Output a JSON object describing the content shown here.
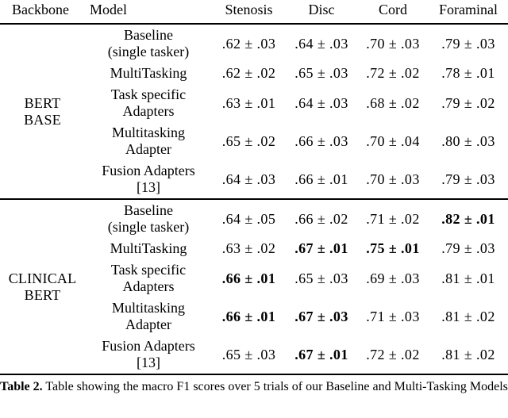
{
  "page": {
    "background": "#ffffff",
    "text_color": "#000000"
  },
  "table": {
    "headers": [
      "Backbone",
      "Model",
      "Stenosis",
      "Disc",
      "Cord",
      "Foraminal"
    ],
    "sections": [
      {
        "backbone_lines": [
          "BERT",
          "BASE"
        ],
        "rows": [
          {
            "model_lines": [
              "Baseline",
              "(single tasker)"
            ],
            "values": [
              {
                "text": ".62 ± .03",
                "bold": false
              },
              {
                "text": ".64 ± .03",
                "bold": false
              },
              {
                "text": ".70 ± .03",
                "bold": false
              },
              {
                "text": ".79 ± .03",
                "bold": false
              }
            ]
          },
          {
            "model_lines": [
              "MultiTasking"
            ],
            "values": [
              {
                "text": ".62 ± .02",
                "bold": false
              },
              {
                "text": ".65 ± .03",
                "bold": false
              },
              {
                "text": ".72 ± .02",
                "bold": false
              },
              {
                "text": ".78 ± .01",
                "bold": false
              }
            ]
          },
          {
            "model_lines": [
              "Task specific",
              "Adapters"
            ],
            "values": [
              {
                "text": ".63 ± .01",
                "bold": false
              },
              {
                "text": ".64 ± .03",
                "bold": false
              },
              {
                "text": ".68 ± .02",
                "bold": false
              },
              {
                "text": ".79 ± .02",
                "bold": false
              }
            ]
          },
          {
            "model_lines": [
              "Multitasking",
              "Adapter"
            ],
            "values": [
              {
                "text": ".65 ± .02",
                "bold": false
              },
              {
                "text": ".66 ± .03",
                "bold": false
              },
              {
                "text": ".70 ± .04",
                "bold": false
              },
              {
                "text": ".80 ± .03",
                "bold": false
              }
            ]
          },
          {
            "model_lines": [
              "Fusion Adapters",
              "[13]"
            ],
            "values": [
              {
                "text": ".64 ± .03",
                "bold": false
              },
              {
                "text": ".66 ± .01",
                "bold": false
              },
              {
                "text": ".70 ± .03",
                "bold": false
              },
              {
                "text": ".79 ± .03",
                "bold": false
              }
            ]
          }
        ]
      },
      {
        "backbone_lines": [
          "CLINICAL",
          "BERT"
        ],
        "rows": [
          {
            "model_lines": [
              "Baseline",
              "(single tasker)"
            ],
            "values": [
              {
                "text": ".64 ± .05",
                "bold": false
              },
              {
                "text": ".66 ± .02",
                "bold": false
              },
              {
                "text": ".71 ± .02",
                "bold": false
              },
              {
                "text": ".82 ± .01",
                "bold": true
              }
            ]
          },
          {
            "model_lines": [
              "MultiTasking"
            ],
            "values": [
              {
                "text": ".63 ± .02",
                "bold": false
              },
              {
                "text": ".67 ± .01",
                "bold": true
              },
              {
                "text": ".75 ± .01",
                "bold": true
              },
              {
                "text": ".79 ± .03",
                "bold": false
              }
            ]
          },
          {
            "model_lines": [
              "Task specific",
              "Adapters"
            ],
            "values": [
              {
                "text": ".66 ± .01",
                "bold": true
              },
              {
                "text": ".65 ± .03",
                "bold": false
              },
              {
                "text": ".69 ± .03",
                "bold": false
              },
              {
                "text": ".81 ± .01",
                "bold": false
              }
            ]
          },
          {
            "model_lines": [
              "Multitasking",
              "Adapter"
            ],
            "values": [
              {
                "text": ".66 ± .01",
                "bold": true
              },
              {
                "text": ".67 ± .03",
                "bold": true
              },
              {
                "text": ".71 ± .03",
                "bold": false
              },
              {
                "text": ".81 ± .02",
                "bold": false
              }
            ]
          },
          {
            "model_lines": [
              "Fusion Adapters",
              "[13]"
            ],
            "values": [
              {
                "text": ".65 ± .03",
                "bold": false
              },
              {
                "text": ".67 ± .01",
                "bold": true
              },
              {
                "text": ".72 ± .02",
                "bold": false
              },
              {
                "text": ".81 ± .02",
                "bold": false
              }
            ]
          }
        ]
      }
    ]
  },
  "caption": {
    "label": "Table 2.",
    "text": "Table showing the macro F1 scores over 5 trials of our Baseline and Multi-Tasking Models"
  }
}
